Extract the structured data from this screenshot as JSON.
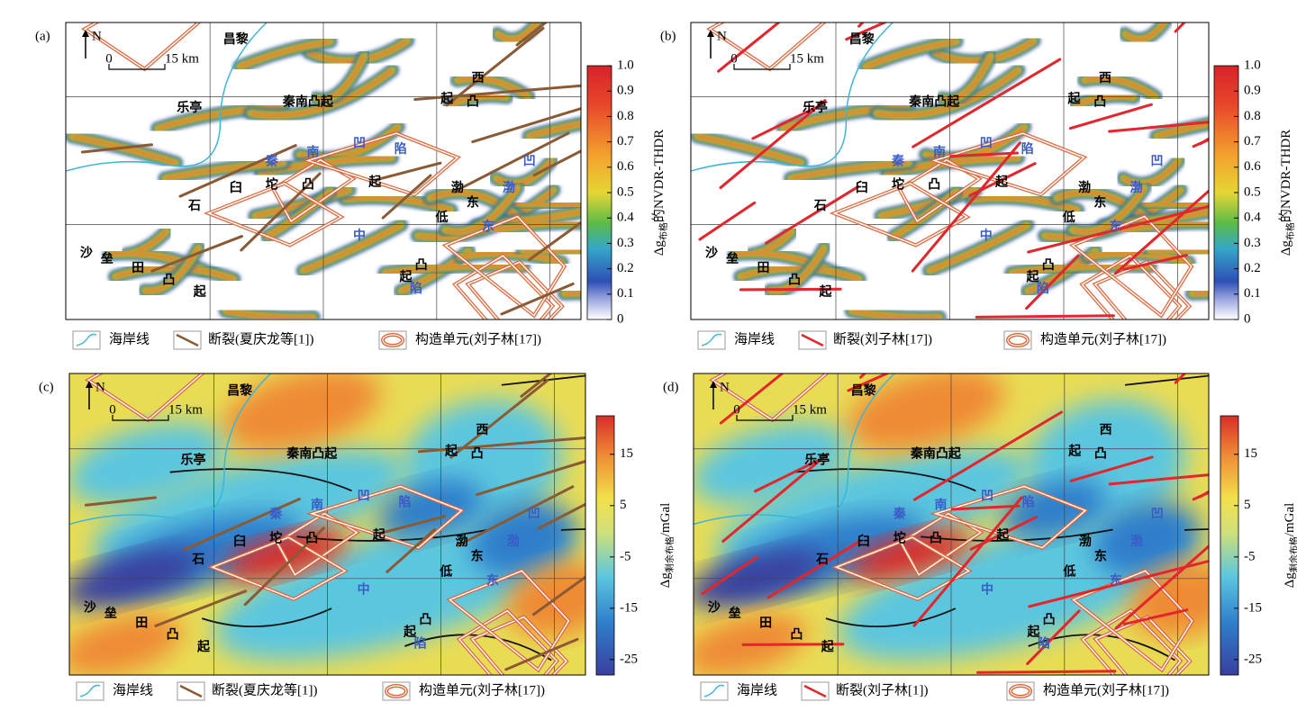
{
  "places": [
    "昌黎",
    "乐亭",
    "秦南凸起",
    "石",
    "臼",
    "坨",
    "凸",
    "起",
    "沙",
    "垒",
    "田",
    "凸",
    "起",
    "西",
    "凸",
    "起",
    "渤",
    "东",
    "低",
    "凸",
    "起",
    "秦",
    "南",
    "凹",
    "陷",
    "中",
    "渤",
    "东",
    "凹",
    "陷"
  ],
  "panels": [
    {
      "label": "(a)",
      "north": "N",
      "scale_zero": "0",
      "scale_km": "15 km",
      "colorbar": {
        "symbol": "Δg",
        "sub": "布格",
        "rest": "的NVDR-THDR",
        "lim": [
          0,
          1
        ],
        "ticks": [
          0,
          0.1,
          0.2,
          0.3,
          0.4,
          0.5,
          0.6,
          0.7,
          0.8,
          0.9,
          {
            "value": 1,
            "label": "1.0"
          }
        ]
      },
      "legend": [
        "海岸线",
        "断裂(夏庆龙等[1])",
        "构造单元(刘子林[17])"
      ]
    },
    {
      "label": "(b)",
      "north": "N",
      "scale_zero": "0",
      "scale_km": "15 km",
      "colorbar": {
        "symbol": "Δg",
        "sub": "布格",
        "rest": "的NVDR-THDR",
        "lim": [
          0,
          1
        ],
        "ticks": [
          0,
          0.1,
          0.2,
          0.3,
          0.4,
          0.5,
          0.6,
          0.7,
          0.8,
          0.9,
          {
            "value": 1,
            "label": "1.0"
          }
        ]
      },
      "legend": [
        "海岸线",
        "断裂(刘子林[17])",
        "构造单元(刘子林[17])"
      ]
    },
    {
      "label": "(c)",
      "north": "N",
      "scale_zero": "0",
      "scale_km": "15 km",
      "colorbar": {
        "symbol": "Δg",
        "sub": "剩余布格",
        "rest": "/mGal",
        "lim": [
          -28,
          22.5
        ],
        "ticks": [
          -25,
          -15,
          -5,
          5,
          15
        ]
      },
      "legend": [
        "海岸线",
        "断裂(夏庆龙等[1])",
        "构造单元(刘子林[17])"
      ]
    },
    {
      "label": "(d)",
      "north": "N",
      "scale_zero": "0",
      "scale_km": "15 km",
      "colorbar": {
        "symbol": "Δg",
        "sub": "剩余布格",
        "rest": "/mGal",
        "lim": [
          -28,
          22.5
        ],
        "ticks": [
          -25,
          -15,
          -5,
          5,
          15
        ]
      },
      "legend": [
        "海岸线",
        "断裂(刘子林[1])",
        "构造单元(刘子林[17])"
      ]
    }
  ]
}
